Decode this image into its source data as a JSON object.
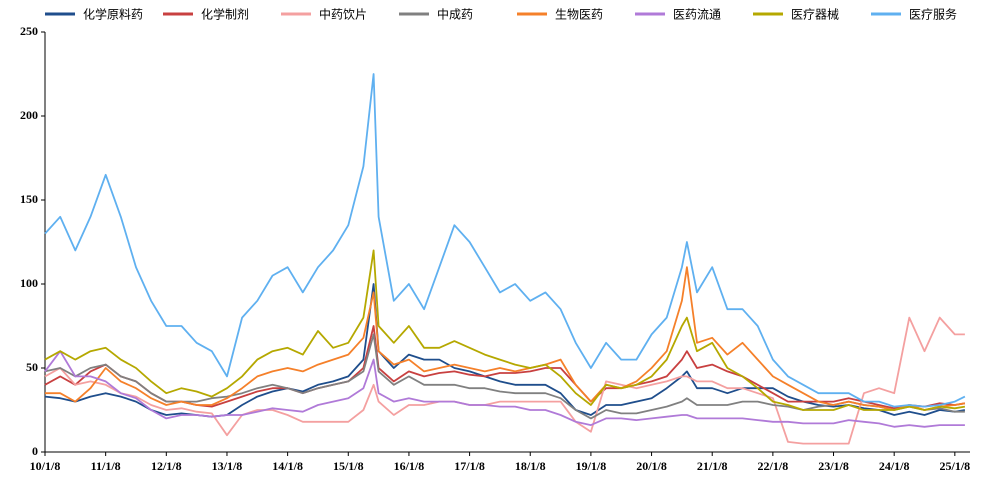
{
  "chart_data": {
    "type": "line",
    "x": [
      "10/1/8",
      "10/4/8",
      "10/7/8",
      "10/10/8",
      "11/1/8",
      "11/4/8",
      "11/7/8",
      "11/10/8",
      "12/1/8",
      "12/4/8",
      "12/7/8",
      "12/10/8",
      "13/1/8",
      "13/4/8",
      "13/7/8",
      "13/10/8",
      "14/1/8",
      "14/4/8",
      "14/7/8",
      "14/10/8",
      "15/1/8",
      "15/4/8",
      "15/6/8",
      "15/7/8",
      "15/10/8",
      "16/1/8",
      "16/4/8",
      "16/7/8",
      "16/10/8",
      "17/1/8",
      "17/4/8",
      "17/7/8",
      "17/10/8",
      "18/1/8",
      "18/4/8",
      "18/7/8",
      "18/10/8",
      "19/1/8",
      "19/4/8",
      "19/7/8",
      "19/10/8",
      "20/1/8",
      "20/4/8",
      "20/7/8",
      "20/8/8",
      "20/10/8",
      "21/1/8",
      "21/4/8",
      "21/7/8",
      "21/10/8",
      "22/1/8",
      "22/4/8",
      "22/7/8",
      "22/10/8",
      "23/1/8",
      "23/4/8",
      "23/7/8",
      "23/10/8",
      "24/1/8",
      "24/4/8",
      "24/7/8",
      "24/10/8",
      "25/1/8",
      "25/3/8"
    ],
    "series": [
      {
        "name": "化学原料药",
        "color": "#1f4e8c",
        "values": [
          33,
          32,
          30,
          33,
          35,
          33,
          30,
          25,
          22,
          23,
          22,
          21,
          22,
          28,
          33,
          36,
          38,
          36,
          40,
          42,
          45,
          55,
          100,
          60,
          50,
          58,
          55,
          55,
          50,
          48,
          45,
          42,
          40,
          40,
          40,
          35,
          25,
          22,
          28,
          28,
          30,
          32,
          38,
          45,
          48,
          38,
          38,
          35,
          38,
          38,
          38,
          33,
          30,
          28,
          27,
          28,
          26,
          25,
          22,
          24,
          22,
          25,
          24,
          25
        ]
      },
      {
        "name": "化学制剂",
        "color": "#c84040",
        "values": [
          40,
          45,
          40,
          48,
          52,
          45,
          42,
          35,
          30,
          30,
          28,
          27,
          30,
          33,
          36,
          38,
          38,
          35,
          38,
          40,
          42,
          50,
          75,
          50,
          42,
          48,
          45,
          47,
          48,
          46,
          45,
          47,
          47,
          48,
          50,
          50,
          40,
          30,
          38,
          38,
          40,
          42,
          45,
          55,
          60,
          50,
          52,
          48,
          45,
          40,
          35,
          30,
          30,
          30,
          30,
          32,
          30,
          28,
          26,
          28,
          27,
          29,
          28,
          29
        ]
      },
      {
        "name": "中药饮片",
        "color": "#f4a0a0",
        "values": [
          45,
          50,
          40,
          42,
          40,
          35,
          33,
          28,
          25,
          26,
          24,
          23,
          10,
          22,
          25,
          25,
          22,
          18,
          18,
          18,
          18,
          25,
          40,
          30,
          22,
          28,
          28,
          30,
          30,
          28,
          28,
          30,
          30,
          30,
          30,
          30,
          18,
          12,
          42,
          40,
          38,
          40,
          42,
          45,
          45,
          42,
          42,
          38,
          38,
          35,
          32,
          6,
          5,
          5,
          5,
          5,
          35,
          38,
          35,
          80,
          60,
          80,
          70,
          70
        ]
      },
      {
        "name": "中成药",
        "color": "#808080",
        "values": [
          48,
          50,
          45,
          50,
          52,
          45,
          42,
          35,
          30,
          30,
          30,
          32,
          33,
          35,
          38,
          40,
          38,
          35,
          38,
          40,
          42,
          48,
          70,
          48,
          40,
          45,
          40,
          40,
          40,
          38,
          38,
          36,
          35,
          35,
          35,
          32,
          25,
          20,
          25,
          23,
          23,
          25,
          27,
          30,
          32,
          28,
          28,
          28,
          30,
          30,
          28,
          27,
          25,
          27,
          28,
          30,
          28,
          27,
          25,
          27,
          25,
          26,
          24,
          24
        ]
      },
      {
        "name": "生物医药",
        "color": "#f5802a",
        "values": [
          35,
          35,
          30,
          38,
          50,
          42,
          38,
          32,
          28,
          30,
          28,
          28,
          32,
          38,
          45,
          48,
          50,
          48,
          52,
          55,
          58,
          68,
          95,
          60,
          52,
          55,
          48,
          50,
          52,
          50,
          48,
          50,
          48,
          50,
          52,
          55,
          40,
          30,
          40,
          38,
          42,
          50,
          60,
          90,
          110,
          65,
          68,
          58,
          65,
          55,
          45,
          40,
          35,
          30,
          28,
          30,
          28,
          27,
          25,
          28,
          25,
          27,
          28,
          29
        ]
      },
      {
        "name": "医药流通",
        "color": "#b07ad8",
        "values": [
          48,
          60,
          45,
          45,
          42,
          35,
          32,
          25,
          20,
          22,
          22,
          21,
          22,
          22,
          24,
          26,
          25,
          24,
          28,
          30,
          32,
          38,
          55,
          35,
          30,
          32,
          30,
          30,
          30,
          28,
          28,
          27,
          27,
          25,
          25,
          22,
          18,
          16,
          20,
          20,
          19,
          20,
          21,
          22,
          22,
          20,
          20,
          20,
          20,
          19,
          18,
          18,
          17,
          17,
          17,
          19,
          18,
          17,
          15,
          16,
          15,
          16,
          16,
          16
        ]
      },
      {
        "name": "医疗器械",
        "color": "#b5a800",
        "values": [
          55,
          60,
          55,
          60,
          62,
          55,
          50,
          42,
          35,
          38,
          36,
          33,
          38,
          45,
          55,
          60,
          62,
          58,
          72,
          62,
          65,
          80,
          120,
          75,
          65,
          75,
          62,
          62,
          66,
          62,
          58,
          55,
          52,
          50,
          52,
          45,
          35,
          28,
          40,
          38,
          40,
          45,
          55,
          75,
          80,
          60,
          65,
          50,
          45,
          38,
          30,
          28,
          25,
          25,
          25,
          28,
          25,
          25,
          25,
          27,
          25,
          27,
          26,
          27
        ]
      },
      {
        "name": "医疗服务",
        "color": "#5fb0f0",
        "values": [
          130,
          140,
          120,
          140,
          165,
          140,
          110,
          90,
          75,
          75,
          65,
          60,
          45,
          80,
          90,
          105,
          110,
          95,
          110,
          120,
          135,
          170,
          225,
          140,
          90,
          100,
          85,
          110,
          135,
          125,
          110,
          95,
          100,
          90,
          95,
          85,
          65,
          50,
          65,
          55,
          55,
          70,
          80,
          110,
          125,
          95,
          110,
          85,
          85,
          75,
          55,
          45,
          40,
          35,
          35,
          35,
          30,
          30,
          27,
          28,
          27,
          28,
          30,
          33
        ]
      }
    ],
    "xlim": [
      "10/1/8",
      "25/4/8"
    ],
    "xticks": [
      "10/1/8",
      "11/1/8",
      "12/1/8",
      "13/1/8",
      "14/1/8",
      "15/1/8",
      "16/1/8",
      "17/1/8",
      "18/1/8",
      "19/1/8",
      "20/1/8",
      "21/1/8",
      "22/1/8",
      "23/1/8",
      "24/1/8",
      "25/1/8"
    ],
    "ylim": [
      0,
      250
    ],
    "yticks": [
      0,
      50,
      100,
      150,
      200,
      250
    ]
  }
}
